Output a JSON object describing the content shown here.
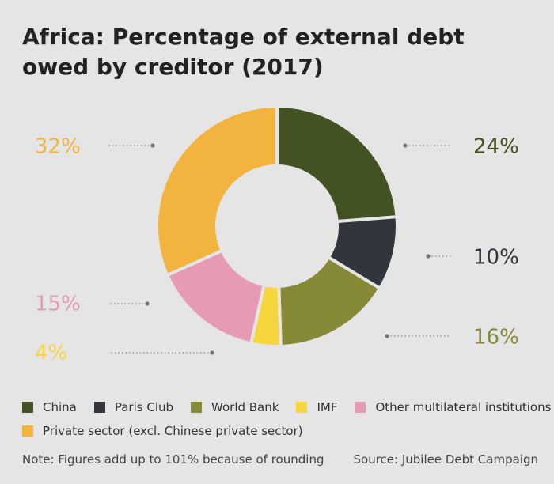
{
  "title": "Africa: Percentage of external debt owed by creditor (2017)",
  "chart_data": {
    "type": "pie",
    "variant": "donut",
    "title": "Africa: Percentage of external debt owed by creditor (2017)",
    "slices": [
      {
        "name": "China",
        "value": 24,
        "label": "24%",
        "color": "#435222"
      },
      {
        "name": "Paris Club",
        "value": 10,
        "label": "10%",
        "color": "#30363c"
      },
      {
        "name": "World Bank",
        "value": 16,
        "label": "16%",
        "color": "#868a36"
      },
      {
        "name": "IMF",
        "value": 4,
        "label": "4%",
        "color": "#f7d63d"
      },
      {
        "name": "Other multilateral institutions",
        "value": 15,
        "label": "15%",
        "color": "#e69ab3"
      },
      {
        "name": "Private sector (excl. Chinese private sector)",
        "value": 32,
        "label": "32%",
        "color": "#f2b43f"
      }
    ],
    "legend_position": "bottom"
  },
  "legend": {
    "row1": [
      "China",
      "Paris Club",
      "World Bank",
      "IMF",
      "Other multilateral institutions"
    ],
    "row2": [
      "Private sector (excl. Chinese private sector)"
    ]
  },
  "note": "Note: Figures add up to 101% because of rounding",
  "source": "Source: Jubilee Debt Campaign"
}
